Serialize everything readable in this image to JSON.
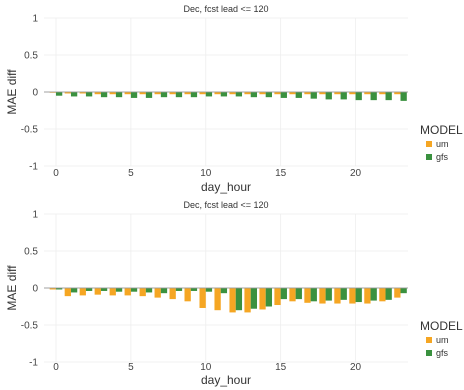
{
  "chart_data": [
    {
      "type": "bar",
      "title": "Dec, fcst lead <= 120",
      "xlabel": "day_hour",
      "ylabel": "MAE diff",
      "ylim": [
        -1,
        1
      ],
      "yticks": [
        -1,
        -0.5,
        0,
        0.5,
        1
      ],
      "xticks": [
        0,
        5,
        10,
        15,
        20
      ],
      "xlim": [
        -0.8,
        23.5
      ],
      "grid": true,
      "legend": {
        "title": "MODEL",
        "position": "right"
      },
      "categories": [
        0,
        1,
        2,
        3,
        4,
        5,
        6,
        7,
        8,
        9,
        10,
        11,
        12,
        13,
        14,
        15,
        16,
        17,
        18,
        19,
        20,
        21,
        22,
        23
      ],
      "series": [
        {
          "name": "um",
          "color": "#F5A623",
          "values": [
            -0.01,
            -0.02,
            -0.02,
            -0.03,
            -0.03,
            -0.03,
            -0.03,
            -0.03,
            -0.03,
            -0.03,
            -0.03,
            -0.03,
            -0.03,
            -0.03,
            -0.03,
            -0.03,
            -0.03,
            -0.03,
            -0.03,
            -0.03,
            -0.03,
            -0.03,
            -0.03,
            -0.03
          ]
        },
        {
          "name": "gfs",
          "color": "#3A913F",
          "values": [
            -0.05,
            -0.06,
            -0.06,
            -0.07,
            -0.07,
            -0.08,
            -0.08,
            -0.07,
            -0.07,
            -0.07,
            -0.06,
            -0.06,
            -0.06,
            -0.07,
            -0.07,
            -0.08,
            -0.08,
            -0.09,
            -0.1,
            -0.1,
            -0.11,
            -0.11,
            -0.11,
            -0.12
          ]
        }
      ]
    },
    {
      "type": "bar",
      "title": "Dec, fcst lead <= 120",
      "xlabel": "day_hour",
      "ylabel": "MAE diff",
      "ylim": [
        -1,
        1
      ],
      "yticks": [
        -1,
        -0.5,
        0,
        0.5,
        1
      ],
      "xticks": [
        0,
        5,
        10,
        15,
        20
      ],
      "xlim": [
        -0.8,
        23.5
      ],
      "grid": true,
      "legend": {
        "title": "MODEL",
        "position": "right"
      },
      "categories": [
        0,
        1,
        2,
        3,
        4,
        5,
        6,
        7,
        8,
        9,
        10,
        11,
        12,
        13,
        14,
        15,
        16,
        17,
        18,
        19,
        20,
        21,
        22,
        23
      ],
      "series": [
        {
          "name": "um",
          "color": "#F5A623",
          "values": [
            -0.02,
            -0.11,
            -0.1,
            -0.09,
            -0.1,
            -0.1,
            -0.11,
            -0.13,
            -0.15,
            -0.18,
            -0.27,
            -0.3,
            -0.33,
            -0.33,
            -0.29,
            -0.23,
            -0.18,
            -0.2,
            -0.21,
            -0.21,
            -0.21,
            -0.21,
            -0.18,
            -0.13
          ]
        },
        {
          "name": "gfs",
          "color": "#3A913F",
          "values": [
            -0.02,
            -0.06,
            -0.04,
            -0.04,
            -0.05,
            -0.05,
            -0.06,
            -0.07,
            -0.04,
            -0.04,
            -0.05,
            -0.07,
            -0.3,
            -0.28,
            -0.25,
            -0.15,
            -0.15,
            -0.18,
            -0.17,
            -0.16,
            -0.19,
            -0.17,
            -0.16,
            -0.07
          ]
        }
      ]
    }
  ]
}
